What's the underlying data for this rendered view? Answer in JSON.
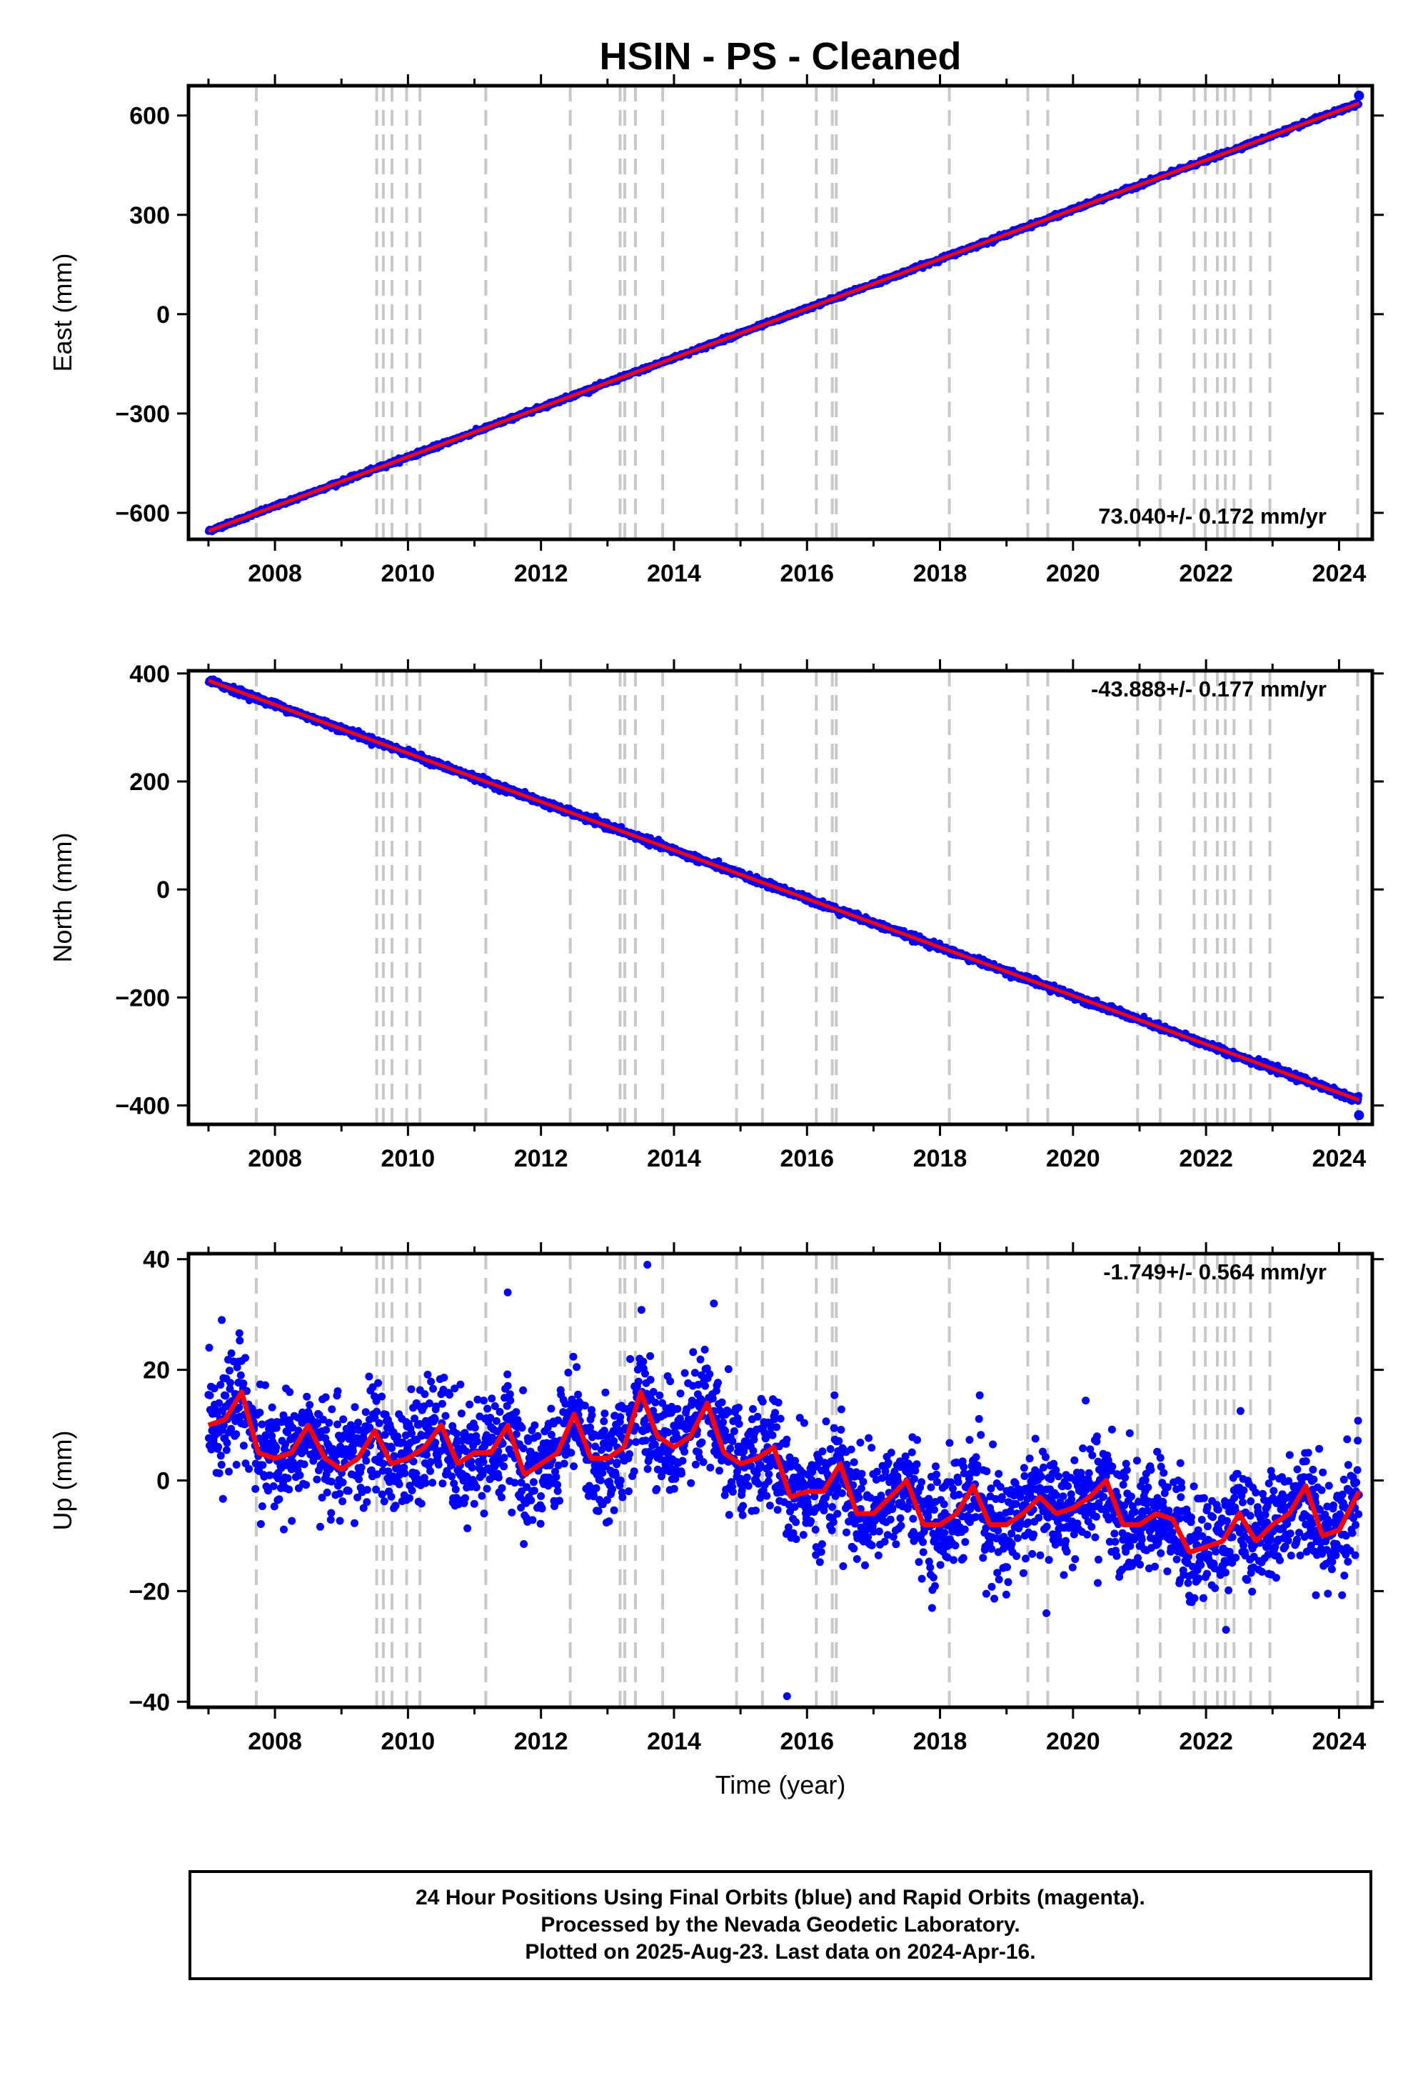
{
  "title": "HSIN  - PS - Cleaned",
  "footer": {
    "line1": "24 Hour Positions Using Final Orbits (blue) and Rapid Orbits (magenta).",
    "line2": "Processed by the Nevada Geodetic Laboratory.",
    "line3": "Plotted on 2025-Aug-23. Last data on 2024-Apr-16."
  },
  "colors": {
    "data_points": "#0000ff",
    "model_line": "#ff0000",
    "equipment_change": "#c8c8c8"
  },
  "chart_data": [
    {
      "type": "scatter",
      "ylabel": "East (mm)",
      "xlabel": "",
      "xlim": [
        2006.7,
        2024.5
      ],
      "ylim": [
        -680,
        690
      ],
      "yticks": [
        -600,
        -300,
        0,
        300,
        600
      ],
      "xticks": [
        2008,
        2010,
        2012,
        2014,
        2016,
        2018,
        2020,
        2022,
        2024
      ],
      "rate_label": "73.040+/- 0.172 mm/yr",
      "rate_position": "bottom-right",
      "trend": {
        "x_start": 2007.0,
        "y_start": -655,
        "x_end": 2024.3,
        "y_end": 637,
        "noise": 3
      },
      "endpoint": {
        "x": 2024.3,
        "y": 660
      },
      "seasonal": null
    },
    {
      "type": "scatter",
      "ylabel": "North (mm)",
      "xlabel": "",
      "xlim": [
        2006.7,
        2024.5
      ],
      "ylim": [
        -435,
        405
      ],
      "yticks": [
        -400,
        -200,
        0,
        200,
        400
      ],
      "xticks": [
        2008,
        2010,
        2012,
        2014,
        2016,
        2018,
        2020,
        2022,
        2024
      ],
      "rate_label": "-43.888+/- 0.177 mm/yr",
      "rate_position": "top-right",
      "trend": {
        "x_start": 2007.0,
        "y_start": 387,
        "x_end": 2024.3,
        "y_end": -390,
        "noise": 3
      },
      "endpoint": {
        "x": 2024.3,
        "y": -418
      },
      "seasonal": null
    },
    {
      "type": "scatter",
      "ylabel": "Up (mm)",
      "xlabel": "Time (year)",
      "xlim": [
        2006.7,
        2024.5
      ],
      "ylim": [
        -41,
        41
      ],
      "yticks": [
        -40,
        -20,
        0,
        20,
        40
      ],
      "xticks": [
        2008,
        2010,
        2012,
        2014,
        2016,
        2018,
        2020,
        2022,
        2024
      ],
      "rate_label": "-1.749+/- 0.564 mm/yr",
      "rate_position": "top-right",
      "model": {
        "x": [
          2007.0,
          2007.25,
          2007.5,
          2007.75,
          2008.0,
          2008.25,
          2008.5,
          2008.75,
          2009.0,
          2009.25,
          2009.5,
          2009.75,
          2010.0,
          2010.25,
          2010.5,
          2010.75,
          2011.0,
          2011.25,
          2011.5,
          2011.75,
          2012.0,
          2012.25,
          2012.5,
          2012.75,
          2013.0,
          2013.25,
          2013.5,
          2013.75,
          2014.0,
          2014.25,
          2014.5,
          2014.75,
          2015.0,
          2015.25,
          2015.5,
          2015.75,
          2016.0,
          2016.25,
          2016.5,
          2016.75,
          2017.0,
          2017.25,
          2017.5,
          2017.75,
          2018.0,
          2018.25,
          2018.5,
          2018.75,
          2019.0,
          2019.25,
          2019.5,
          2019.75,
          2020.0,
          2020.25,
          2020.5,
          2020.75,
          2021.0,
          2021.25,
          2021.5,
          2021.75,
          2022.0,
          2022.25,
          2022.5,
          2022.75,
          2023.0,
          2023.25,
          2023.5,
          2023.75,
          2024.0,
          2024.3
        ],
        "y": [
          10,
          11,
          16,
          5,
          4,
          5,
          10,
          4,
          2,
          4,
          9,
          3,
          4,
          6,
          10,
          3,
          5,
          5,
          10,
          1,
          3,
          5,
          12,
          4,
          4,
          6,
          16,
          8,
          6,
          8,
          14,
          5,
          3,
          4,
          6,
          -3,
          -2,
          -2,
          3,
          -6,
          -6,
          -3,
          0,
          -8,
          -8,
          -6,
          -1,
          -8,
          -8,
          -6,
          -3,
          -6,
          -5,
          -3,
          0,
          -8,
          -8,
          -6,
          -7,
          -13,
          -12,
          -11,
          -6,
          -11,
          -8,
          -6,
          -1,
          -10,
          -9,
          -2
        ]
      },
      "noise_sd": 5,
      "outliers": [
        {
          "x": 2013.6,
          "y": 39
        },
        {
          "x": 2015.7,
          "y": -39
        },
        {
          "x": 2011.5,
          "y": 34
        },
        {
          "x": 2014.6,
          "y": 32
        },
        {
          "x": 2007.2,
          "y": 29
        },
        {
          "x": 2019.6,
          "y": -24
        },
        {
          "x": 2022.3,
          "y": -27
        }
      ]
    }
  ],
  "equipment_changes": [
    2007.72,
    2009.53,
    2009.63,
    2009.76,
    2009.98,
    2010.18,
    2011.17,
    2012.44,
    2013.19,
    2013.26,
    2013.42,
    2013.83,
    2014.94,
    2015.33,
    2016.14,
    2016.38,
    2016.44,
    2018.14,
    2019.32,
    2019.62,
    2020.97,
    2021.31,
    2021.82,
    2021.99,
    2022.17,
    2022.29,
    2022.42,
    2022.67,
    2022.96,
    2024.28
  ]
}
